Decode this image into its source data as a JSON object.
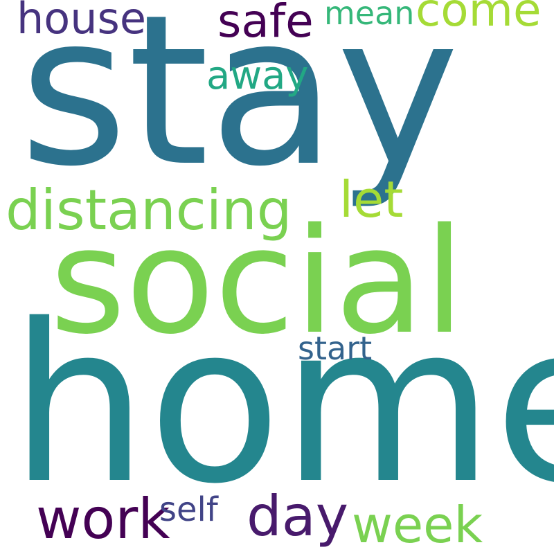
{
  "words": [
    {
      "id": "stay",
      "text": "stay",
      "color": "#2c728e"
    },
    {
      "id": "social",
      "text": "social",
      "color": "#7ad151"
    },
    {
      "id": "home",
      "text": "home",
      "color": "#24868e"
    },
    {
      "id": "distancing",
      "text": "distancing",
      "color": "#7ad151"
    },
    {
      "id": "house",
      "text": "house",
      "color": "#46337f"
    },
    {
      "id": "safe",
      "text": "safe",
      "color": "#440154"
    },
    {
      "id": "mean",
      "text": "mean",
      "color": "#35b779"
    },
    {
      "id": "come",
      "text": "come",
      "color": "#a5db36"
    },
    {
      "id": "away",
      "text": "away",
      "color": "#22a884"
    },
    {
      "id": "let",
      "text": "let",
      "color": "#a5db36"
    },
    {
      "id": "start",
      "text": "start",
      "color": "#33638d"
    },
    {
      "id": "work",
      "text": "work",
      "color": "#440154"
    },
    {
      "id": "self",
      "text": "self",
      "color": "#414487"
    },
    {
      "id": "day",
      "text": "day",
      "color": "#481a6c"
    },
    {
      "id": "week",
      "text": "week",
      "color": "#7ad151"
    }
  ]
}
